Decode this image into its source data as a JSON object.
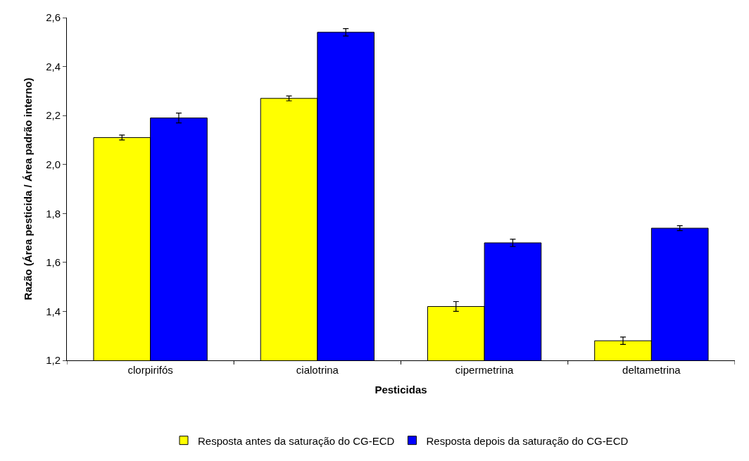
{
  "chart_data": {
    "type": "bar",
    "xlabel": "Pesticidas",
    "ylabel": "Razão (Área pesticida / Área padrão interno)",
    "categories": [
      "clorpirifós",
      "cialotrina",
      "cipermetrina",
      "deltametrina"
    ],
    "series": [
      {
        "name": "Resposta antes da saturação do CG-ECD",
        "color": "#ffff00",
        "values": [
          2.11,
          2.27,
          1.42,
          1.28
        ],
        "errors": [
          0.01,
          0.01,
          0.02,
          0.015
        ]
      },
      {
        "name": "Resposta depois da saturação do CG-ECD",
        "color": "#0000ff",
        "values": [
          2.19,
          2.54,
          1.68,
          1.74
        ],
        "errors": [
          0.02,
          0.015,
          0.015,
          0.01
        ]
      }
    ],
    "ylim": [
      1.2,
      2.6
    ],
    "yticks": [
      {
        "value": 1.2,
        "label": "1,2"
      },
      {
        "value": 1.4,
        "label": "1,4"
      },
      {
        "value": 1.6,
        "label": "1,6"
      },
      {
        "value": 1.8,
        "label": "1,8"
      },
      {
        "value": 2.0,
        "label": "2,0"
      },
      {
        "value": 2.2,
        "label": "2,2"
      },
      {
        "value": 2.4,
        "label": "2,4"
      },
      {
        "value": 2.6,
        "label": "2,6"
      }
    ],
    "legend": "bottom"
  }
}
